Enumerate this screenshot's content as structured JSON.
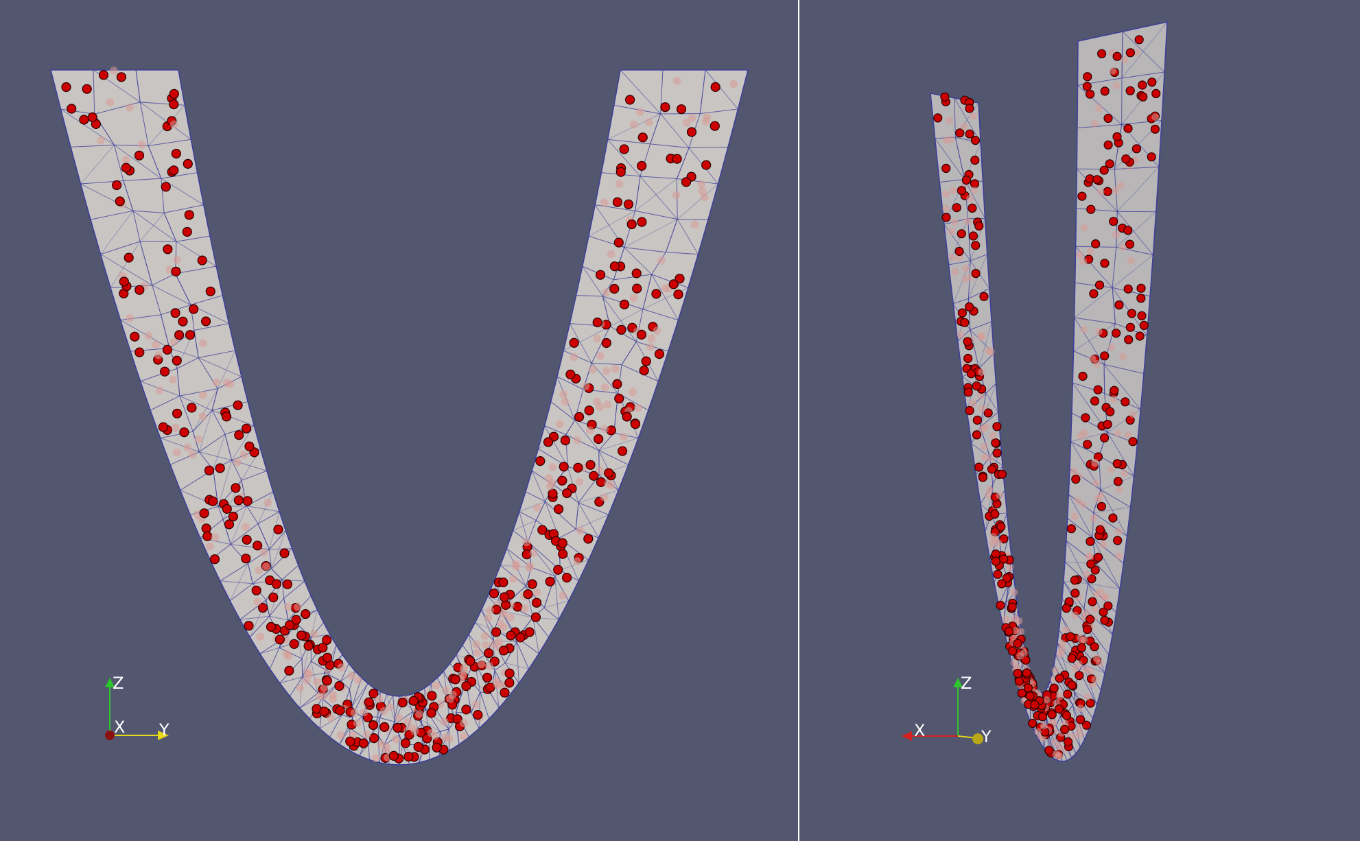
{
  "window": {
    "background_color": "#52566e",
    "divider_color": "#ffffff"
  },
  "scene": {
    "mesh_fill_color": "#c9c5c2",
    "mesh_edge_color": "#3d3f9a",
    "particle_color": "#cc0000",
    "particle_faded_color": "#d79a95"
  },
  "views": {
    "left": {
      "triad": {
        "vertical": "Z",
        "horizontal": "Y",
        "depth": "X"
      }
    },
    "right": {
      "triad": {
        "vertical": "Z",
        "left": "X",
        "right": "Y"
      }
    }
  },
  "triad_colors": {
    "x": "#d42020",
    "y": "#e8d81a",
    "z": "#2ec42e"
  }
}
